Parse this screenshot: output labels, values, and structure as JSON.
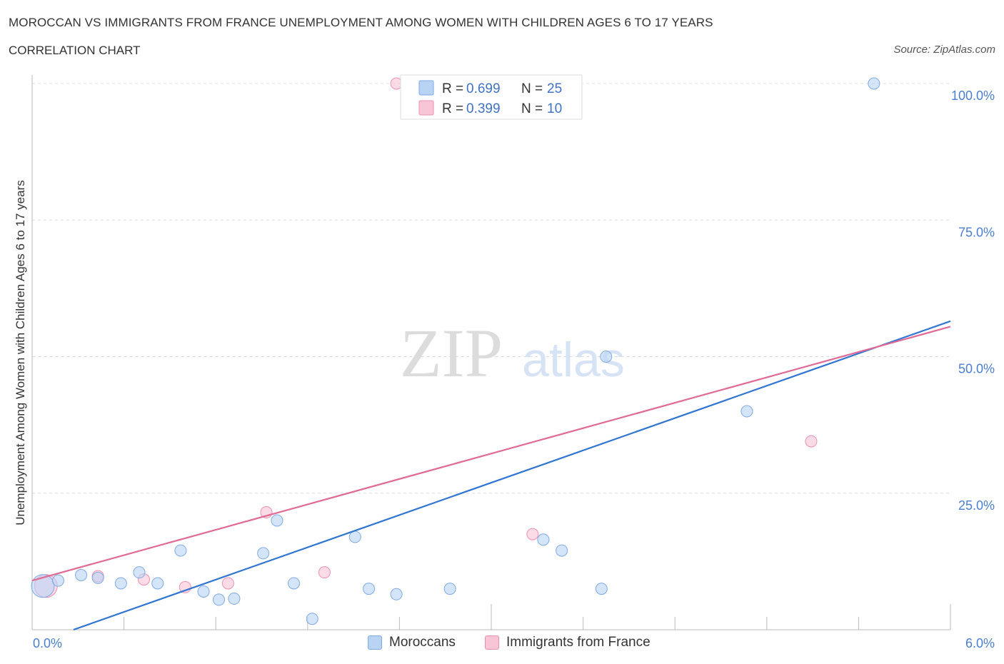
{
  "title": "MOROCCAN VS IMMIGRANTS FROM FRANCE UNEMPLOYMENT AMONG WOMEN WITH CHILDREN AGES 6 TO 17 YEARS",
  "subtitle": "CORRELATION CHART",
  "source": "Source: ZipAtlas.com",
  "watermark": {
    "zip": "ZIP",
    "atlas": "atlas"
  },
  "colors": {
    "moroccans_fill": "#b9d3f5",
    "moroccans_stroke": "#7eaae6",
    "moroccans_line": "#2f75d1",
    "france_fill": "#f8c5d6",
    "france_stroke": "#ee8fb0",
    "france_line": "#e06b95",
    "tick_text": "#4a7fd0",
    "grid": "#dddddd"
  },
  "legend": {
    "rows": [
      {
        "r_label": "R = ",
        "r_value": "0.699",
        "n_label": "N = ",
        "n_value": "25"
      },
      {
        "r_label": "R = ",
        "r_value": "0.399",
        "n_label": "N = ",
        "n_value": "10"
      }
    ]
  },
  "chart_data": {
    "type": "scatter",
    "title": "MOROCCAN VS IMMIGRANTS FROM FRANCE UNEMPLOYMENT AMONG WOMEN WITH CHILDREN AGES 6 TO 17 YEARS",
    "subtitle": "CORRELATION CHART",
    "xlabel": "",
    "ylabel": "Unemployment Among Women with Children Ages 6 to 17 years",
    "xlim": [
      0,
      6
    ],
    "ylim": [
      0,
      100
    ],
    "x_tick_labels": [
      "0.0%",
      "6.0%"
    ],
    "y_tick_values": [
      25,
      50,
      75,
      100
    ],
    "y_tick_labels": [
      "25.0%",
      "50.0%",
      "75.0%",
      "100.0%"
    ],
    "grid": true,
    "legend_position": "top-center",
    "series": [
      {
        "name": "Moroccans",
        "R": 0.699,
        "N": 25,
        "trend": {
          "x": [
            0.27,
            6.0
          ],
          "y": [
            0.0,
            56.5
          ]
        },
        "points": [
          {
            "x": 0.07,
            "y": 8.0,
            "big": true
          },
          {
            "x": 0.17,
            "y": 9.0
          },
          {
            "x": 0.32,
            "y": 10.0
          },
          {
            "x": 0.43,
            "y": 9.5
          },
          {
            "x": 0.58,
            "y": 8.5
          },
          {
            "x": 0.7,
            "y": 10.5
          },
          {
            "x": 0.82,
            "y": 8.5
          },
          {
            "x": 0.97,
            "y": 14.5
          },
          {
            "x": 1.12,
            "y": 7.0
          },
          {
            "x": 1.22,
            "y": 5.5
          },
          {
            "x": 1.32,
            "y": 5.7
          },
          {
            "x": 1.51,
            "y": 14.0
          },
          {
            "x": 1.6,
            "y": 20.0
          },
          {
            "x": 1.71,
            "y": 8.5
          },
          {
            "x": 1.83,
            "y": 2.0
          },
          {
            "x": 2.11,
            "y": 17.0
          },
          {
            "x": 2.2,
            "y": 7.5
          },
          {
            "x": 2.38,
            "y": 6.5
          },
          {
            "x": 2.73,
            "y": 7.5
          },
          {
            "x": 3.34,
            "y": 16.5
          },
          {
            "x": 3.46,
            "y": 14.5
          },
          {
            "x": 3.72,
            "y": 7.5
          },
          {
            "x": 3.75,
            "y": 50.0
          },
          {
            "x": 4.67,
            "y": 40.0
          },
          {
            "x": 5.5,
            "y": 100.0
          }
        ]
      },
      {
        "name": "Immigrants from France",
        "R": 0.399,
        "N": 10,
        "trend": {
          "x": [
            0.0,
            6.0
          ],
          "y": [
            9.0,
            55.5
          ]
        },
        "points": [
          {
            "x": 0.09,
            "y": 8.0,
            "big": true
          },
          {
            "x": 0.43,
            "y": 9.8
          },
          {
            "x": 0.73,
            "y": 9.2
          },
          {
            "x": 1.0,
            "y": 7.8
          },
          {
            "x": 1.28,
            "y": 8.5
          },
          {
            "x": 1.53,
            "y": 21.5
          },
          {
            "x": 1.91,
            "y": 10.5
          },
          {
            "x": 2.38,
            "y": 100.0
          },
          {
            "x": 3.27,
            "y": 17.5
          },
          {
            "x": 5.09,
            "y": 34.5
          }
        ]
      }
    ]
  }
}
